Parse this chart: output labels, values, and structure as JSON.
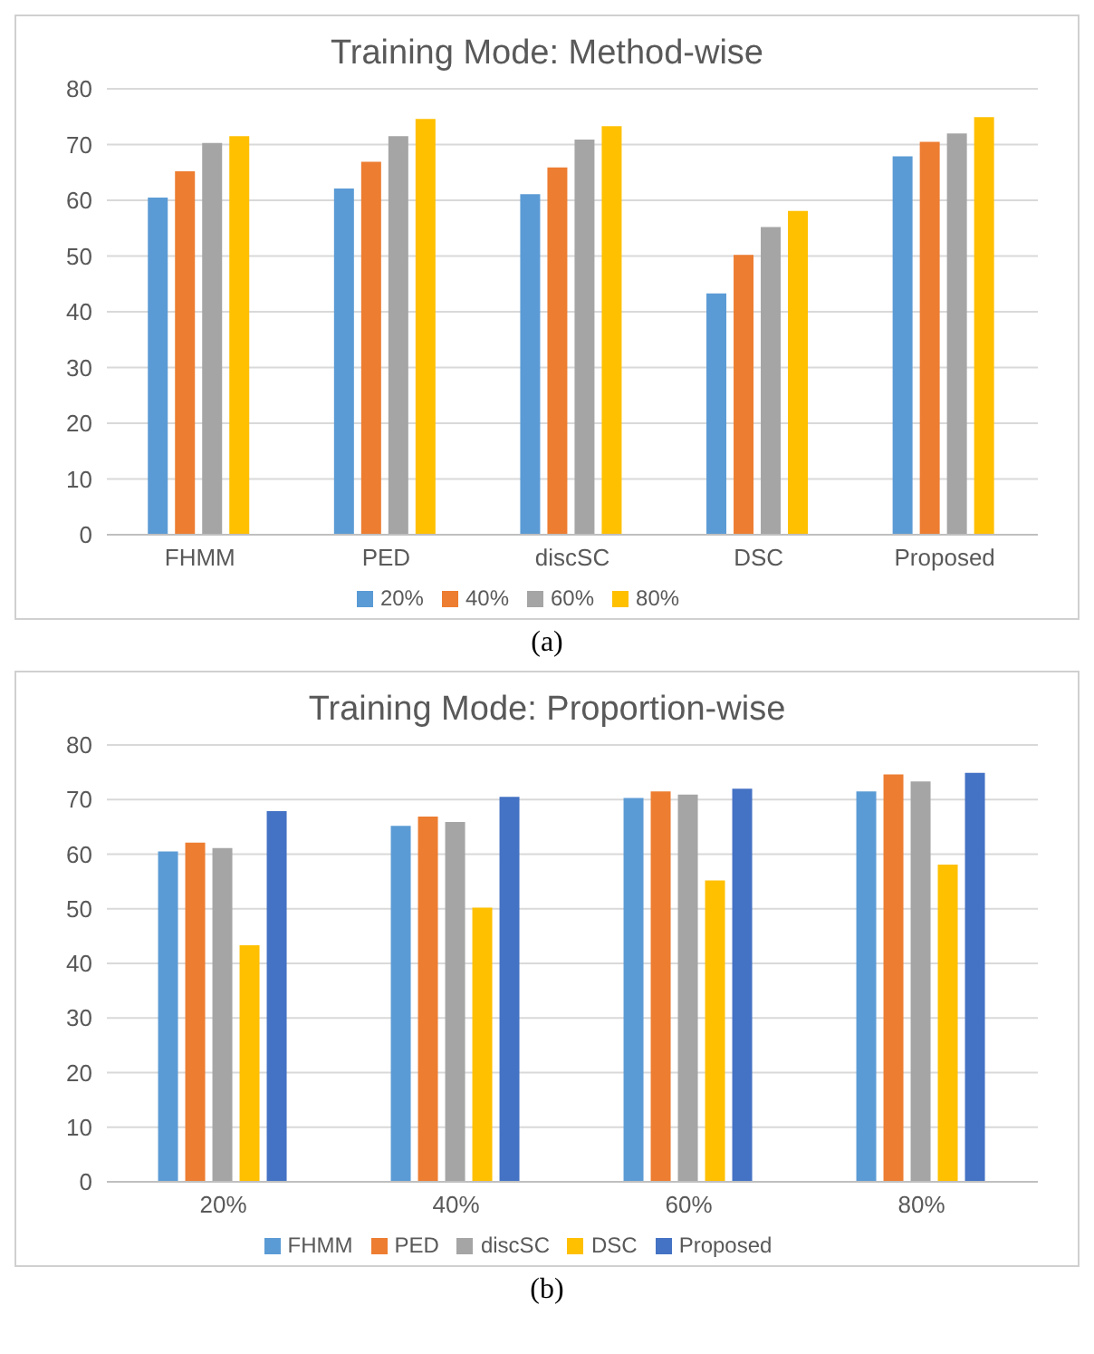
{
  "chart_data": [
    {
      "type": "bar",
      "title": "Training Mode: Method-wise",
      "categories": [
        "FHMM",
        "PED",
        "discSC",
        "DSC",
        "Proposed"
      ],
      "series": [
        {
          "name": "20%",
          "color": "#5b9bd5",
          "values": [
            60.5,
            62.1,
            61.1,
            43.3,
            67.9
          ]
        },
        {
          "name": "40%",
          "color": "#ed7d31",
          "values": [
            65.2,
            66.9,
            65.9,
            50.2,
            70.5
          ]
        },
        {
          "name": "60%",
          "color": "#a5a5a5",
          "values": [
            70.3,
            71.5,
            70.9,
            55.2,
            72.0
          ]
        },
        {
          "name": "80%",
          "color": "#ffc000",
          "values": [
            71.5,
            74.6,
            73.3,
            58.1,
            74.9
          ]
        }
      ],
      "ylim": [
        0,
        80
      ],
      "yticks": [
        0,
        10,
        20,
        30,
        40,
        50,
        60,
        70,
        80
      ],
      "grid": "y",
      "legend": "bottom",
      "annotations": [
        "(a)"
      ]
    },
    {
      "type": "bar",
      "title": "Training Mode: Proportion-wise",
      "categories": [
        "20%",
        "40%",
        "60%",
        "80%"
      ],
      "series": [
        {
          "name": "FHMM",
          "color": "#5b9bd5",
          "values": [
            60.5,
            65.2,
            70.3,
            71.5
          ]
        },
        {
          "name": "PED",
          "color": "#ed7d31",
          "values": [
            62.1,
            66.9,
            71.5,
            74.6
          ]
        },
        {
          "name": "discSC",
          "color": "#a5a5a5",
          "values": [
            61.1,
            65.9,
            70.9,
            73.3
          ]
        },
        {
          "name": "DSC",
          "color": "#ffc000",
          "values": [
            43.3,
            50.2,
            55.2,
            58.1
          ]
        },
        {
          "name": "Proposed",
          "color": "#4472c4",
          "values": [
            67.9,
            70.5,
            72.0,
            74.9
          ]
        }
      ],
      "ylim": [
        0,
        80
      ],
      "yticks": [
        0,
        10,
        20,
        30,
        40,
        50,
        60,
        70,
        80
      ],
      "grid": "y",
      "legend": "bottom",
      "annotations": [
        "(b)"
      ]
    }
  ]
}
